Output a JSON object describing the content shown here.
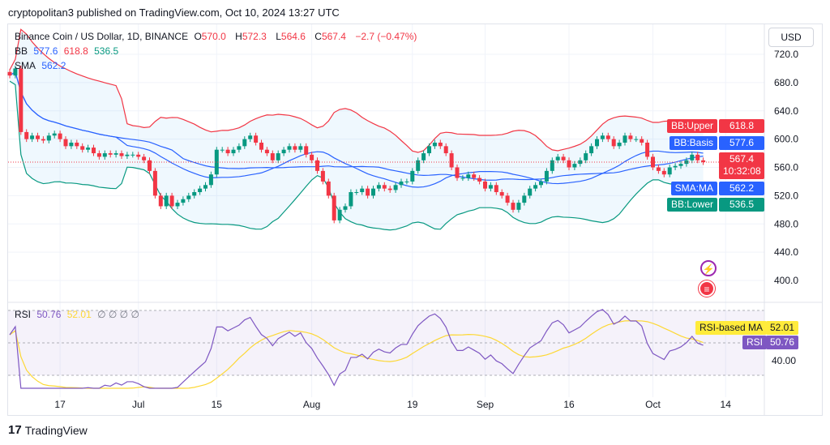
{
  "header": {
    "publisher": "cryptopolitan3 published on TradingView.com, Oct 10, 2024 13:27 UTC"
  },
  "legend": {
    "symbol": "Binance Coin / US Dollar, 1D, BINANCE",
    "o_label": "O",
    "o": "570.0",
    "h_label": "H",
    "h": "572.3",
    "l_label": "L",
    "l": "564.6",
    "c_label": "C",
    "c": "567.4",
    "change": "−2.7 (−0.47%)",
    "bb_label": "BB",
    "bb_basis": "577.6",
    "bb_upper": "618.8",
    "bb_lower": "536.5",
    "sma_label": "SMA",
    "sma": "562.2",
    "rsi_label": "RSI",
    "rsi": "50.76",
    "rsi_ma": "52.01",
    "rsi_extra": "∅ ∅ ∅ ∅"
  },
  "currency": "USD",
  "tags": {
    "bb_upper_label": "BB:Upper",
    "bb_upper": "618.8",
    "bb_basis_label": "BB:Basis",
    "bb_basis": "577.6",
    "price": "567.4",
    "countdown": "10:32:08",
    "sma_label": "SMA:MA",
    "sma": "562.2",
    "bb_lower_label": "BB:Lower",
    "bb_lower": "536.5",
    "rsi_ma_label": "RSI-based MA",
    "rsi_ma": "52.01",
    "rsi_label": "RSI",
    "rsi": "50.76",
    "rsi_tick": "40.00"
  },
  "colors": {
    "up": "#089981",
    "down": "#f23645",
    "bb_basis": "#2962ff",
    "bb_upper": "#f23645",
    "bb_lower": "#089981",
    "rsi": "#7e57c2",
    "rsi_ma": "#fdd835",
    "band_fill": "#2196f3"
  },
  "footer": {
    "brand": "TradingView"
  },
  "chart_data": {
    "type": "candlestick",
    "start_date": "2024-06-08",
    "y_ticks": [
      "720.0",
      "680.0",
      "640.0",
      "600.0",
      "560.0",
      "520.0",
      "480.0",
      "440.0",
      "400.0"
    ],
    "ylim": [
      395,
      730
    ],
    "x_ticks": [
      "17",
      "Jul",
      "15",
      "Aug",
      "19",
      "Sep",
      "16",
      "Oct",
      "14"
    ],
    "close": [
      690,
      700,
      610,
      600,
      605,
      600,
      598,
      605,
      608,
      600,
      590,
      595,
      590,
      585,
      588,
      580,
      575,
      580,
      578,
      580,
      576,
      578,
      578,
      575,
      570,
      555,
      520,
      505,
      520,
      505,
      510,
      515,
      520,
      525,
      530,
      535,
      550,
      585,
      585,
      580,
      585,
      590,
      600,
      605,
      595,
      585,
      580,
      570,
      580,
      585,
      590,
      585,
      590,
      578,
      570,
      555,
      540,
      520,
      485,
      500,
      505,
      525,
      525,
      530,
      520,
      530,
      535,
      530,
      528,
      535,
      540,
      540,
      555,
      570,
      580,
      590,
      595,
      590,
      580,
      560,
      545,
      545,
      550,
      545,
      540,
      530,
      535,
      525,
      520,
      510,
      500,
      510,
      520,
      530,
      535,
      540,
      555,
      570,
      575,
      570,
      560,
      565,
      570,
      580,
      590,
      600,
      605,
      600,
      590,
      595,
      605,
      600,
      600,
      595,
      575,
      560,
      555,
      550,
      560,
      562,
      565,
      570,
      578,
      570,
      567.4
    ]
  }
}
